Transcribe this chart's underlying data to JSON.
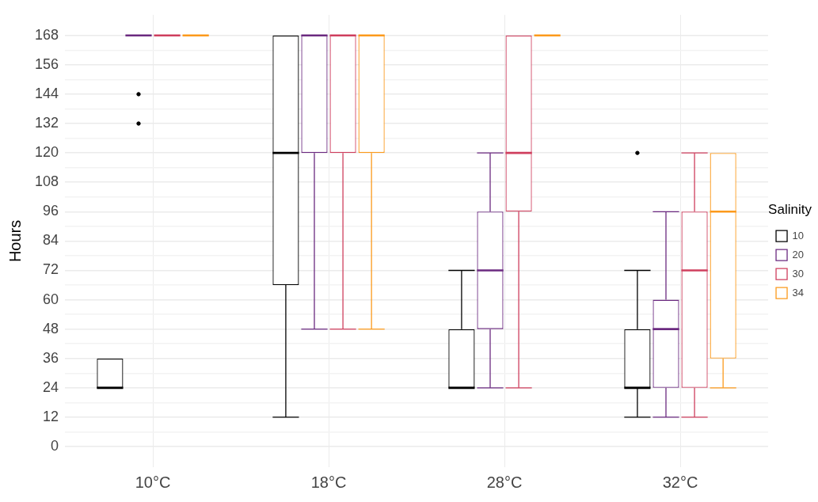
{
  "chart_data": {
    "type": "box",
    "ylabel": "Hours",
    "legend_title": "Salinity",
    "legend": "right",
    "grid": true,
    "categories": [
      "10°C",
      "18°C",
      "28°C",
      "32°C"
    ],
    "ylim": [
      -8.4,
      176.4
    ],
    "yticks": [
      0,
      {
        "value": 6,
        "label": null
      },
      12,
      {
        "value": 18,
        "label": null
      },
      24,
      {
        "value": 30,
        "label": null
      },
      36,
      {
        "value": 42,
        "label": null
      },
      48,
      {
        "value": 54,
        "label": null
      },
      60,
      {
        "value": 66,
        "label": null
      },
      72,
      {
        "value": 78,
        "label": null
      },
      84,
      {
        "value": 90,
        "label": null
      },
      96,
      {
        "value": 102,
        "label": null
      },
      108,
      {
        "value": 114,
        "label": null
      },
      120,
      {
        "value": 126,
        "label": null
      },
      132,
      {
        "value": 138,
        "label": null
      },
      144,
      {
        "value": 150,
        "label": null
      },
      156,
      {
        "value": 162,
        "label": null
      },
      168
    ],
    "series": [
      {
        "name": "10",
        "color": "#000000",
        "boxes": [
          {
            "low": 24,
            "q1": 24,
            "median": 24,
            "q3": 36,
            "high": 36
          },
          {
            "low": 12,
            "q1": 66,
            "median": 120,
            "q3": 168,
            "high": 168
          },
          {
            "low": 24,
            "q1": 24,
            "median": 24,
            "q3": 48,
            "high": 72
          },
          {
            "low": 12,
            "q1": 24,
            "median": 24,
            "q3": 48,
            "high": 72,
            "outliers": [
              120
            ]
          }
        ]
      },
      {
        "name": "20",
        "color": "#6b2a80",
        "boxes": [
          {
            "low": 168,
            "q1": 168,
            "median": 168,
            "q3": 168,
            "high": 168,
            "outliers": [
              144,
              132
            ]
          },
          {
            "low": 48,
            "q1": 120,
            "median": 168,
            "q3": 168,
            "high": 168
          },
          {
            "low": 24,
            "q1": 48,
            "median": 72,
            "q3": 96,
            "high": 120
          },
          {
            "low": 12,
            "q1": 24,
            "median": 48,
            "q3": 60,
            "high": 96
          }
        ]
      },
      {
        "name": "30",
        "color": "#cf3f5e",
        "boxes": [
          {
            "low": 168,
            "q1": 168,
            "median": 168,
            "q3": 168,
            "high": 168
          },
          {
            "low": 48,
            "q1": 120,
            "median": 168,
            "q3": 168,
            "high": 168
          },
          {
            "low": 24,
            "q1": 96,
            "median": 120,
            "q3": 168,
            "high": 168
          },
          {
            "low": 12,
            "q1": 24,
            "median": 72,
            "q3": 96,
            "high": 120
          }
        ]
      },
      {
        "name": "34",
        "color": "#fc9a1c",
        "boxes": [
          {
            "low": 168,
            "q1": 168,
            "median": 168,
            "q3": 168,
            "high": 168
          },
          {
            "low": 48,
            "q1": 120,
            "median": 168,
            "q3": 168,
            "high": 168
          },
          {
            "low": 168,
            "q1": 168,
            "median": 168,
            "q3": 168,
            "high": 168
          },
          {
            "low": 24,
            "q1": 36,
            "median": 96,
            "q3": 120,
            "high": 120
          }
        ]
      }
    ]
  }
}
